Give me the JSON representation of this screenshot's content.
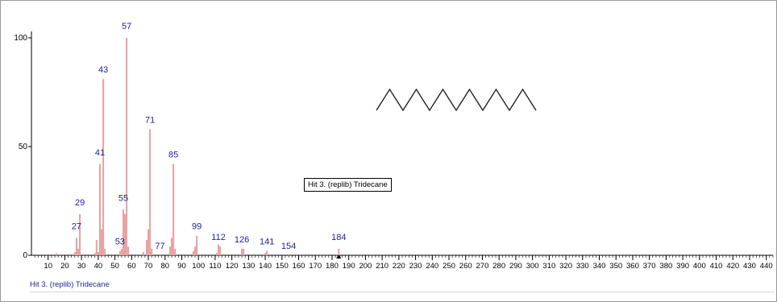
{
  "chart_data": {
    "type": "bar",
    "xlim": [
      0,
      444
    ],
    "ylim": [
      0,
      105
    ],
    "x_ticks": [
      10,
      20,
      30,
      40,
      50,
      60,
      70,
      80,
      90,
      100,
      110,
      120,
      130,
      140,
      150,
      160,
      170,
      180,
      190,
      200,
      210,
      220,
      230,
      240,
      250,
      260,
      270,
      280,
      290,
      300,
      310,
      320,
      330,
      340,
      350,
      360,
      370,
      380,
      390,
      400,
      410,
      420,
      430,
      440
    ],
    "y_ticks": [
      0,
      50,
      100
    ],
    "peaks": [
      {
        "mz": 15,
        "intensity": 1
      },
      {
        "mz": 26,
        "intensity": 1.5
      },
      {
        "mz": 27,
        "intensity": 8
      },
      {
        "mz": 28,
        "intensity": 3
      },
      {
        "mz": 29,
        "intensity": 19
      },
      {
        "mz": 38,
        "intensity": 1
      },
      {
        "mz": 39,
        "intensity": 7
      },
      {
        "mz": 40,
        "intensity": 1.5
      },
      {
        "mz": 41,
        "intensity": 42
      },
      {
        "mz": 42,
        "intensity": 12
      },
      {
        "mz": 43,
        "intensity": 81
      },
      {
        "mz": 44,
        "intensity": 3
      },
      {
        "mz": 53,
        "intensity": 2
      },
      {
        "mz": 54,
        "intensity": 3
      },
      {
        "mz": 55,
        "intensity": 21
      },
      {
        "mz": 56,
        "intensity": 19
      },
      {
        "mz": 57,
        "intensity": 100
      },
      {
        "mz": 58,
        "intensity": 4
      },
      {
        "mz": 67,
        "intensity": 1.5
      },
      {
        "mz": 69,
        "intensity": 7
      },
      {
        "mz": 70,
        "intensity": 12
      },
      {
        "mz": 71,
        "intensity": 58
      },
      {
        "mz": 72,
        "intensity": 3
      },
      {
        "mz": 77,
        "intensity": 0.5
      },
      {
        "mz": 83,
        "intensity": 4
      },
      {
        "mz": 84,
        "intensity": 8
      },
      {
        "mz": 85,
        "intensity": 42
      },
      {
        "mz": 86,
        "intensity": 3
      },
      {
        "mz": 97,
        "intensity": 2
      },
      {
        "mz": 98,
        "intensity": 4
      },
      {
        "mz": 99,
        "intensity": 9
      },
      {
        "mz": 111,
        "intensity": 1
      },
      {
        "mz": 112,
        "intensity": 5
      },
      {
        "mz": 113,
        "intensity": 4
      },
      {
        "mz": 126,
        "intensity": 3
      },
      {
        "mz": 127,
        "intensity": 3
      },
      {
        "mz": 140,
        "intensity": 1
      },
      {
        "mz": 141,
        "intensity": 2
      },
      {
        "mz": 154,
        "intensity": 0.5
      },
      {
        "mz": 184,
        "intensity": 3
      }
    ],
    "labeled_peaks": [
      {
        "mz": 27,
        "label": "27",
        "label_y": 12
      },
      {
        "mz": 29,
        "label": "29",
        "label_y": 23
      },
      {
        "mz": 41,
        "label": "41",
        "label_y": 46
      },
      {
        "mz": 43,
        "label": "43",
        "label_y": 84
      },
      {
        "mz": 53,
        "label": "53",
        "label_y": 5
      },
      {
        "mz": 55,
        "label": "55",
        "label_y": 25
      },
      {
        "mz": 57,
        "label": "57",
        "label_y": 104
      },
      {
        "mz": 71,
        "label": "71",
        "label_y": 61
      },
      {
        "mz": 77,
        "label": "77",
        "label_y": 3
      },
      {
        "mz": 85,
        "label": "85",
        "label_y": 45
      },
      {
        "mz": 99,
        "label": "99",
        "label_y": 12
      },
      {
        "mz": 112,
        "label": "112",
        "label_y": 7
      },
      {
        "mz": 126,
        "label": "126",
        "label_y": 6
      },
      {
        "mz": 141,
        "label": "141",
        "label_y": 5
      },
      {
        "mz": 154,
        "label": "154",
        "label_y": 3
      },
      {
        "mz": 184,
        "label": "184",
        "label_y": 7
      }
    ],
    "marker_mz": 184,
    "hit_label": "Hit 3. (replib) Tridecane",
    "footer_label": "Hit 3. (replib) Tridecane",
    "colors": {
      "peak": "#e8a0a0",
      "peak_label": "#1f1f9a",
      "axis": "#000000",
      "structure": "#222222"
    },
    "structure_icon": "tridecane-skeletal-zigzag"
  }
}
